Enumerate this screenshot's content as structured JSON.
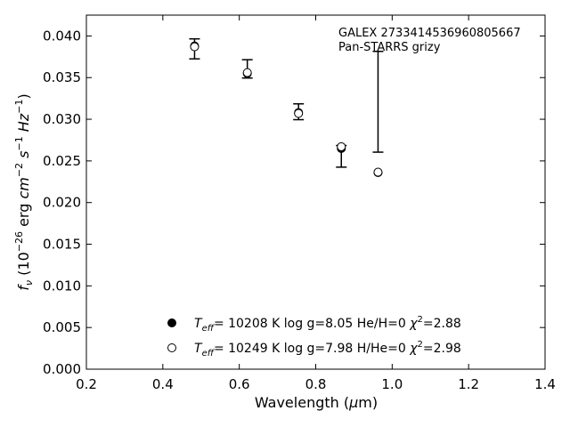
{
  "chart_data": {
    "type": "scatter",
    "xlabel": "Wavelength (μm)",
    "ylabel": "f_ν (10^-26 erg cm^-2 s^-1 Hz^-1)",
    "xlim": [
      0.2,
      1.4
    ],
    "ylim": [
      0.0,
      0.0425
    ],
    "xticks": [
      0.2,
      0.4,
      0.6,
      0.8,
      1.0,
      1.2,
      1.4
    ],
    "xtick_labels": [
      "0.2",
      "0.4",
      "0.6",
      "0.8",
      "1.0",
      "1.2",
      "1.4"
    ],
    "yticks": [
      0.0,
      0.005,
      0.01,
      0.015,
      0.02,
      0.025,
      0.03,
      0.035,
      0.04
    ],
    "ytick_labels": [
      "0.000",
      "0.005",
      "0.010",
      "0.015",
      "0.020",
      "0.025",
      "0.030",
      "0.035",
      "0.040"
    ],
    "grid": false,
    "annotations": [
      "GALEX 2733414536960805667",
      "Pan-STARRS grizy"
    ],
    "observed": [
      {
        "x": 0.483,
        "y": 0.03845,
        "yerr_low": 0.03725,
        "yerr_high": 0.03965
      },
      {
        "x": 0.621,
        "y": 0.03545,
        "yerr_low": 0.03495,
        "yerr_high": 0.03715
      },
      {
        "x": 0.755,
        "y": 0.03075,
        "yerr_low": 0.02995,
        "yerr_high": 0.03185
      },
      {
        "x": 0.867,
        "y": 0.02665,
        "yerr_low": 0.02425,
        "yerr_high": 0.02685
      },
      {
        "x": 0.963,
        "y": 0.03205,
        "yerr_low": 0.02605,
        "yerr_high": 0.03815
      }
    ],
    "series": [
      {
        "name": "T_eff= 10208 K  log g=8.05  He/H=0  χ²=2.88",
        "marker": "filled-circle",
        "x": [
          0.483,
          0.621,
          0.755,
          0.867,
          0.963
        ],
        "y": [
          0.0388,
          0.0355,
          0.0308,
          0.0265,
          0.0236
        ]
      },
      {
        "name": "T_eff= 10249 K  log g=7.98  H/He=0  χ²=2.98",
        "marker": "open-circle",
        "x": [
          0.483,
          0.621,
          0.755,
          0.867,
          0.963
        ],
        "y": [
          0.0387,
          0.0356,
          0.0307,
          0.0267,
          0.02365
        ]
      }
    ]
  }
}
